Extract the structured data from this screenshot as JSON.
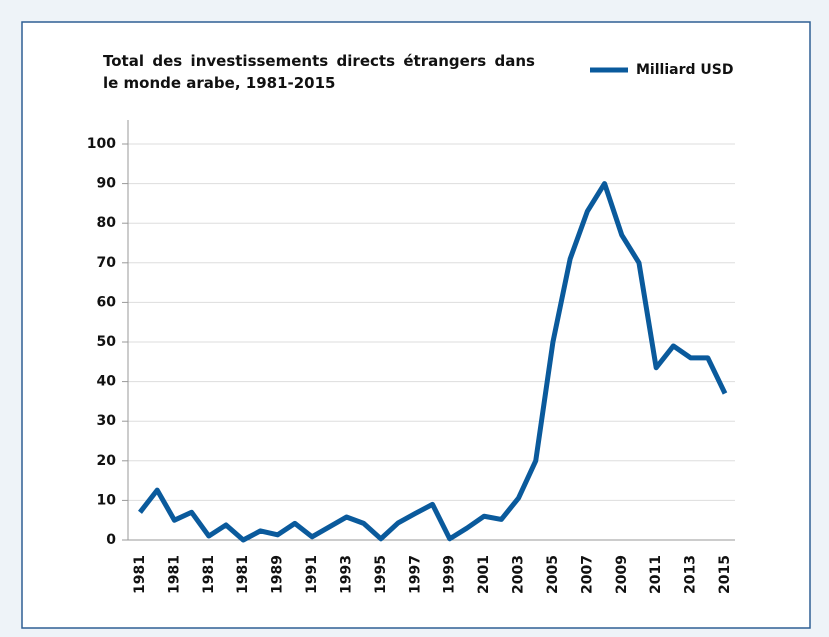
{
  "chart_data": {
    "type": "line",
    "title": "Total des investissements directs étrangers dans le monde arabe, 1981-2015",
    "categories": [
      "1981",
      null,
      "1981",
      null,
      "1981",
      null,
      "1981",
      null,
      "1989",
      null,
      "1991",
      null,
      "1993",
      null,
      "1995",
      null,
      "1997",
      null,
      "1999",
      null,
      "2001",
      null,
      "2003",
      null,
      "2005",
      null,
      "2007",
      null,
      "2009",
      null,
      "2011",
      null,
      "2013",
      null,
      "2015"
    ],
    "series": [
      {
        "name": "Milliard USD",
        "color": "#0a5a9c",
        "values": [
          7,
          12.6,
          5,
          7,
          1,
          3.8,
          0,
          2.3,
          1.3,
          4.2,
          0.8,
          3.3,
          5.8,
          4.2,
          0.3,
          4.3,
          6.7,
          9,
          0.3,
          3,
          6,
          5.2,
          10.6,
          20,
          50,
          71,
          83,
          90,
          77,
          70,
          43.5,
          49,
          46,
          46,
          37
        ]
      }
    ],
    "ylim": [
      0,
      100
    ],
    "yticks": [
      0,
      10,
      20,
      30,
      40,
      50,
      60,
      70,
      80,
      90,
      100
    ],
    "grid": true,
    "legend": "top-right"
  }
}
